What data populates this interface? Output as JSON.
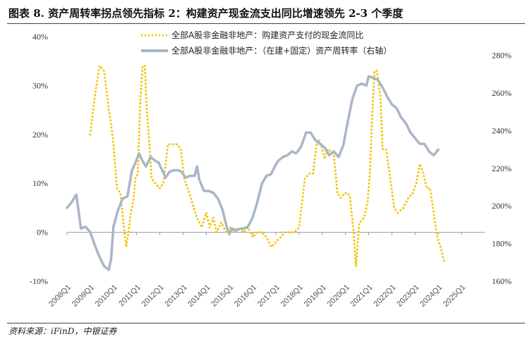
{
  "header": {
    "title": "图表 8. 资产周转率拐点领先指标 2：构建资产现金流支出同比增速领先 2-3 个季度"
  },
  "footer": {
    "source": "资料来源：iFinD，中银证券"
  },
  "colors": {
    "series_cashflow": "#f5c400",
    "series_turnover": "#a9b6c8",
    "zero_line": "#999999",
    "text": "#333333"
  },
  "chart_data": {
    "type": "line",
    "legend_position": "top-center",
    "grid": false,
    "left_axis": {
      "ylim": [
        -0.1,
        0.4
      ],
      "ticks": [
        -0.1,
        0.0,
        0.1,
        0.2,
        0.3,
        0.4
      ],
      "tick_labels": [
        "-10%",
        "0%",
        "10%",
        "20%",
        "30%",
        "40%"
      ]
    },
    "right_axis": {
      "ylim": [
        1.6,
        2.9
      ],
      "ticks": [
        1.6,
        1.8,
        2.0,
        2.2,
        2.4,
        2.6,
        2.8
      ],
      "tick_labels": [
        "160%",
        "180%",
        "200%",
        "220%",
        "240%",
        "260%",
        "280%"
      ]
    },
    "x_axis": {
      "range": [
        2008.0,
        2026.0
      ],
      "tick_positions": [
        2008,
        2009,
        2010,
        2011,
        2012,
        2013,
        2014,
        2015,
        2016,
        2017,
        2018,
        2019,
        2020,
        2021,
        2022,
        2023,
        2024,
        2025
      ],
      "tick_labels": [
        "2008Q1",
        "2009Q1",
        "2010Q1",
        "2011Q1",
        "2012Q1",
        "2013Q1",
        "2014Q1",
        "2015Q1",
        "2016Q1",
        "2017Q1",
        "2018Q1",
        "2019Q1",
        "2020Q1",
        "2021Q1",
        "2022Q1",
        "2023Q1",
        "2024Q1",
        "2025Q1"
      ]
    },
    "series": [
      {
        "name": "全部A股非金融非地产：购建资产支付的现金流同比",
        "axis": "left",
        "style": "dotted",
        "points": [
          [
            2009.0,
            0.2
          ],
          [
            2009.2,
            0.28
          ],
          [
            2009.4,
            0.34
          ],
          [
            2009.6,
            0.33
          ],
          [
            2009.8,
            0.25
          ],
          [
            2009.9,
            0.22
          ],
          [
            2010.0,
            0.18
          ],
          [
            2010.15,
            0.09
          ],
          [
            2010.3,
            0.08
          ],
          [
            2010.45,
            0.01
          ],
          [
            2010.55,
            -0.03
          ],
          [
            2010.65,
            0.0
          ],
          [
            2010.75,
            0.04
          ],
          [
            2010.85,
            0.06
          ],
          [
            2010.95,
            0.11
          ],
          [
            2011.05,
            0.12
          ],
          [
            2011.15,
            0.26
          ],
          [
            2011.25,
            0.34
          ],
          [
            2011.35,
            0.34
          ],
          [
            2011.45,
            0.24
          ],
          [
            2011.55,
            0.18
          ],
          [
            2011.65,
            0.11
          ],
          [
            2011.8,
            0.1
          ],
          [
            2012.0,
            0.09
          ],
          [
            2012.15,
            0.1
          ],
          [
            2012.35,
            0.18
          ],
          [
            2012.55,
            0.18
          ],
          [
            2012.75,
            0.18
          ],
          [
            2012.9,
            0.17
          ],
          [
            2013.05,
            0.11
          ],
          [
            2013.2,
            0.09
          ],
          [
            2013.4,
            0.06
          ],
          [
            2013.6,
            0.03
          ],
          [
            2013.8,
            0.01
          ],
          [
            2014.0,
            0.04
          ],
          [
            2014.15,
            0.01
          ],
          [
            2014.3,
            0.03
          ],
          [
            2014.45,
            0.0
          ],
          [
            2014.65,
            0.02
          ],
          [
            2014.85,
            0.0
          ],
          [
            2015.0,
            0.01
          ],
          [
            2015.2,
            0.0
          ],
          [
            2015.4,
            0.01
          ],
          [
            2015.6,
            0.0
          ],
          [
            2015.8,
            0.01
          ],
          [
            2016.0,
            -0.01
          ],
          [
            2016.2,
            0.0
          ],
          [
            2016.4,
            0.0
          ],
          [
            2016.6,
            -0.01
          ],
          [
            2016.8,
            -0.03
          ],
          [
            2017.0,
            -0.02
          ],
          [
            2017.2,
            -0.01
          ],
          [
            2017.4,
            0.0
          ],
          [
            2017.6,
            0.0
          ],
          [
            2017.8,
            0.0
          ],
          [
            2018.0,
            0.01
          ],
          [
            2018.1,
            0.05
          ],
          [
            2018.25,
            0.11
          ],
          [
            2018.45,
            0.12
          ],
          [
            2018.6,
            0.12
          ],
          [
            2018.75,
            0.18
          ],
          [
            2018.85,
            0.19
          ],
          [
            2018.95,
            0.18
          ],
          [
            2019.1,
            0.15
          ],
          [
            2019.25,
            0.17
          ],
          [
            2019.5,
            0.16
          ],
          [
            2019.65,
            0.08
          ],
          [
            2019.8,
            0.07
          ],
          [
            2019.95,
            0.08
          ],
          [
            2020.1,
            0.08
          ],
          [
            2020.2,
            0.07
          ],
          [
            2020.35,
            0.0
          ],
          [
            2020.45,
            -0.07
          ],
          [
            2020.6,
            0.02
          ],
          [
            2020.8,
            0.03
          ],
          [
            2020.95,
            0.06
          ],
          [
            2021.05,
            0.12
          ],
          [
            2021.15,
            0.24
          ],
          [
            2021.25,
            0.33
          ],
          [
            2021.35,
            0.33
          ],
          [
            2021.5,
            0.28
          ],
          [
            2021.6,
            0.17
          ],
          [
            2021.75,
            0.17
          ],
          [
            2021.9,
            0.12
          ],
          [
            2022.1,
            0.05
          ],
          [
            2022.25,
            0.04
          ],
          [
            2022.5,
            0.05
          ],
          [
            2022.7,
            0.07
          ],
          [
            2022.9,
            0.08
          ],
          [
            2023.05,
            0.1
          ],
          [
            2023.2,
            0.14
          ],
          [
            2023.35,
            0.12
          ],
          [
            2023.5,
            0.09
          ],
          [
            2023.65,
            0.09
          ],
          [
            2023.8,
            0.04
          ],
          [
            2023.95,
            -0.01
          ],
          [
            2024.1,
            -0.03
          ],
          [
            2024.25,
            -0.06
          ]
        ]
      },
      {
        "name": "全部A股非金融非地产：（在建+固定）资产周转率（右轴）",
        "axis": "right",
        "style": "solid",
        "points": [
          [
            2008.0,
            1.99
          ],
          [
            2008.2,
            2.02
          ],
          [
            2008.4,
            2.06
          ],
          [
            2008.6,
            1.88
          ],
          [
            2008.8,
            1.89
          ],
          [
            2009.0,
            1.86
          ],
          [
            2009.2,
            1.79
          ],
          [
            2009.4,
            1.73
          ],
          [
            2009.6,
            1.68
          ],
          [
            2009.8,
            1.66
          ],
          [
            2009.9,
            1.72
          ],
          [
            2010.0,
            1.89
          ],
          [
            2010.2,
            1.98
          ],
          [
            2010.4,
            2.04
          ],
          [
            2010.6,
            2.05
          ],
          [
            2010.8,
            2.19
          ],
          [
            2010.95,
            2.23
          ],
          [
            2011.1,
            2.28
          ],
          [
            2011.25,
            2.24
          ],
          [
            2011.4,
            2.21
          ],
          [
            2011.6,
            2.26
          ],
          [
            2011.8,
            2.24
          ],
          [
            2011.95,
            2.23
          ],
          [
            2012.1,
            2.19
          ],
          [
            2012.25,
            2.15
          ],
          [
            2012.4,
            2.18
          ],
          [
            2012.6,
            2.19
          ],
          [
            2012.8,
            2.19
          ],
          [
            2012.95,
            2.18
          ],
          [
            2013.1,
            2.15
          ],
          [
            2013.3,
            2.16
          ],
          [
            2013.5,
            2.16
          ],
          [
            2013.6,
            2.21
          ],
          [
            2013.7,
            2.14
          ],
          [
            2013.9,
            2.08
          ],
          [
            2014.1,
            2.08
          ],
          [
            2014.3,
            2.07
          ],
          [
            2014.5,
            2.04
          ],
          [
            2014.7,
            1.98
          ],
          [
            2014.9,
            1.88
          ],
          [
            2015.0,
            1.85
          ],
          [
            2015.1,
            1.88
          ],
          [
            2015.3,
            1.87
          ],
          [
            2015.5,
            1.88
          ],
          [
            2015.6,
            1.88
          ],
          [
            2015.8,
            1.89
          ],
          [
            2016.0,
            1.94
          ],
          [
            2016.2,
            2.02
          ],
          [
            2016.4,
            2.12
          ],
          [
            2016.6,
            2.16
          ],
          [
            2016.8,
            2.17
          ],
          [
            2016.95,
            2.21
          ],
          [
            2017.1,
            2.24
          ],
          [
            2017.3,
            2.26
          ],
          [
            2017.5,
            2.27
          ],
          [
            2017.7,
            2.29
          ],
          [
            2017.85,
            2.28
          ],
          [
            2017.95,
            2.29
          ],
          [
            2018.1,
            2.32
          ],
          [
            2018.3,
            2.39
          ],
          [
            2018.5,
            2.39
          ],
          [
            2018.7,
            2.35
          ],
          [
            2018.9,
            2.33
          ],
          [
            2019.1,
            2.31
          ],
          [
            2019.3,
            2.27
          ],
          [
            2019.5,
            2.29
          ],
          [
            2019.7,
            2.26
          ],
          [
            2019.9,
            2.32
          ],
          [
            2020.1,
            2.45
          ],
          [
            2020.3,
            2.57
          ],
          [
            2020.5,
            2.64
          ],
          [
            2020.7,
            2.65
          ],
          [
            2020.9,
            2.64
          ],
          [
            2021.0,
            2.69
          ],
          [
            2021.2,
            2.68
          ],
          [
            2021.4,
            2.67
          ],
          [
            2021.6,
            2.63
          ],
          [
            2021.8,
            2.58
          ],
          [
            2022.0,
            2.54
          ],
          [
            2022.2,
            2.52
          ],
          [
            2022.4,
            2.47
          ],
          [
            2022.6,
            2.44
          ],
          [
            2022.8,
            2.39
          ],
          [
            2023.0,
            2.36
          ],
          [
            2023.2,
            2.33
          ],
          [
            2023.4,
            2.33
          ],
          [
            2023.6,
            2.29
          ],
          [
            2023.8,
            2.27
          ],
          [
            2024.0,
            2.3
          ]
        ]
      }
    ]
  }
}
